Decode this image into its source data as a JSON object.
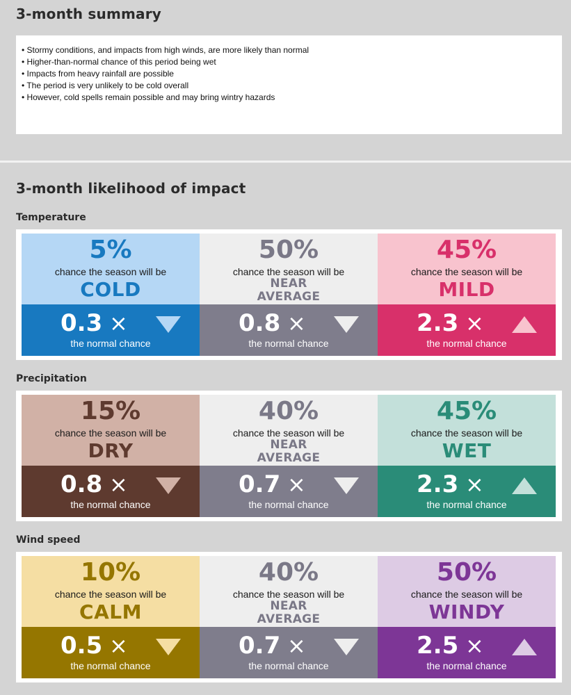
{
  "summary": {
    "heading": "3-month summary",
    "bullets": [
      "Stormy conditions, and impacts from high winds, are more likely than normal",
      "Higher-than-normal chance of this period being wet",
      "Impacts from heavy rainfall are possible",
      "The period is very unlikely to be cold overall",
      "However, cold spells remain possible and may bring wintry hazards"
    ]
  },
  "impact": {
    "heading": "3-month likelihood of impact",
    "chance_text": "chance the season will be",
    "normal_text": "the normal chance",
    "times_symbol": "×",
    "sections": [
      {
        "title": "Temperature",
        "cards": [
          {
            "percent": "5%",
            "category": "COLD",
            "ratio": "0.3",
            "trend": "down",
            "top_color": "#b5d7f5",
            "accent_color": "#1879c0",
            "bottom_color": "#1879c0",
            "arrow_color": "#b5d7f5"
          },
          {
            "percent": "50%",
            "category_line1": "NEAR",
            "category_line2": "AVERAGE",
            "ratio": "0.8",
            "trend": "down",
            "top_color": "#eeeeee",
            "accent_color": "#7a7887",
            "bottom_color": "#7f7d8c",
            "arrow_color": "#eeeeee"
          },
          {
            "percent": "45%",
            "category": "MILD",
            "ratio": "2.3",
            "trend": "up",
            "top_color": "#f8c3ce",
            "accent_color": "#d8306a",
            "bottom_color": "#d8306a",
            "arrow_color": "#f8c3ce"
          }
        ]
      },
      {
        "title": "Precipitation",
        "cards": [
          {
            "percent": "15%",
            "category": "DRY",
            "ratio": "0.8",
            "trend": "down",
            "top_color": "#d1b1a6",
            "accent_color": "#5e3a2f",
            "bottom_color": "#5e3a2f",
            "arrow_color": "#d1b1a6"
          },
          {
            "percent": "40%",
            "category_line1": "NEAR",
            "category_line2": "AVERAGE",
            "ratio": "0.7",
            "trend": "down",
            "top_color": "#eeeeee",
            "accent_color": "#7a7887",
            "bottom_color": "#7f7d8c",
            "arrow_color": "#eeeeee"
          },
          {
            "percent": "45%",
            "category": "WET",
            "ratio": "2.3",
            "trend": "up",
            "top_color": "#c3e0da",
            "accent_color": "#2a8c78",
            "bottom_color": "#2a8c78",
            "arrow_color": "#c3e0da"
          }
        ]
      },
      {
        "title": "Wind speed",
        "cards": [
          {
            "percent": "10%",
            "category": "CALM",
            "ratio": "0.5",
            "trend": "down",
            "top_color": "#f5dea3",
            "accent_color": "#957600",
            "bottom_color": "#957600",
            "arrow_color": "#f5dea3"
          },
          {
            "percent": "40%",
            "category_line1": "NEAR",
            "category_line2": "AVERAGE",
            "ratio": "0.7",
            "trend": "down",
            "top_color": "#eeeeee",
            "accent_color": "#7a7887",
            "bottom_color": "#7f7d8c",
            "arrow_color": "#eeeeee"
          },
          {
            "percent": "50%",
            "category": "WINDY",
            "ratio": "2.5",
            "trend": "up",
            "top_color": "#ddcbe4",
            "accent_color": "#7d3696",
            "bottom_color": "#7d3696",
            "arrow_color": "#ddcbe4"
          }
        ]
      }
    ]
  }
}
